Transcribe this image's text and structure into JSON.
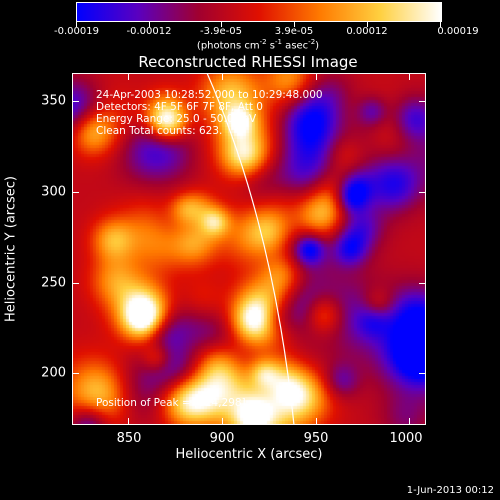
{
  "colorbar": {
    "tick_labels": [
      "-0.00019",
      "-0.00012",
      "-3.9e-05",
      "3.9e-05",
      "0.00012",
      "0.00019"
    ],
    "units_prefix": "(photons cm",
    "units_exp1": "-2",
    "units_mid1": " s",
    "units_exp2": "-1",
    "units_mid2": " asec",
    "units_exp3": "-2",
    "units_suffix": ")",
    "colormap": [
      "#0000ff",
      "#5a00c0",
      "#a00030",
      "#e01000",
      "#ff7a00",
      "#ffd040",
      "#ffffff"
    ]
  },
  "title": "Reconstructed RHESSI Image",
  "info": {
    "time_range": "24-Apr-2003 10:28:52.000 to 10:29:48.000",
    "detectors": "Detectors: 4F 5F 6F 7F 8F, Att 0",
    "energy": "Energy Range: 25.0 - 50.0 keV",
    "method": "Clean    Total counts: 623.",
    "peak": "Position of Peak = [824,298]"
  },
  "x_axis": {
    "title": "Heliocentric X (arcsec)",
    "tick_labels": [
      "850",
      "900",
      "950",
      "1000"
    ]
  },
  "y_axis": {
    "title": "Heliocentric Y (arcsec)",
    "tick_labels": [
      "200",
      "250",
      "300",
      "350"
    ]
  },
  "footer_date": "1-Jun-2013 00:12"
}
